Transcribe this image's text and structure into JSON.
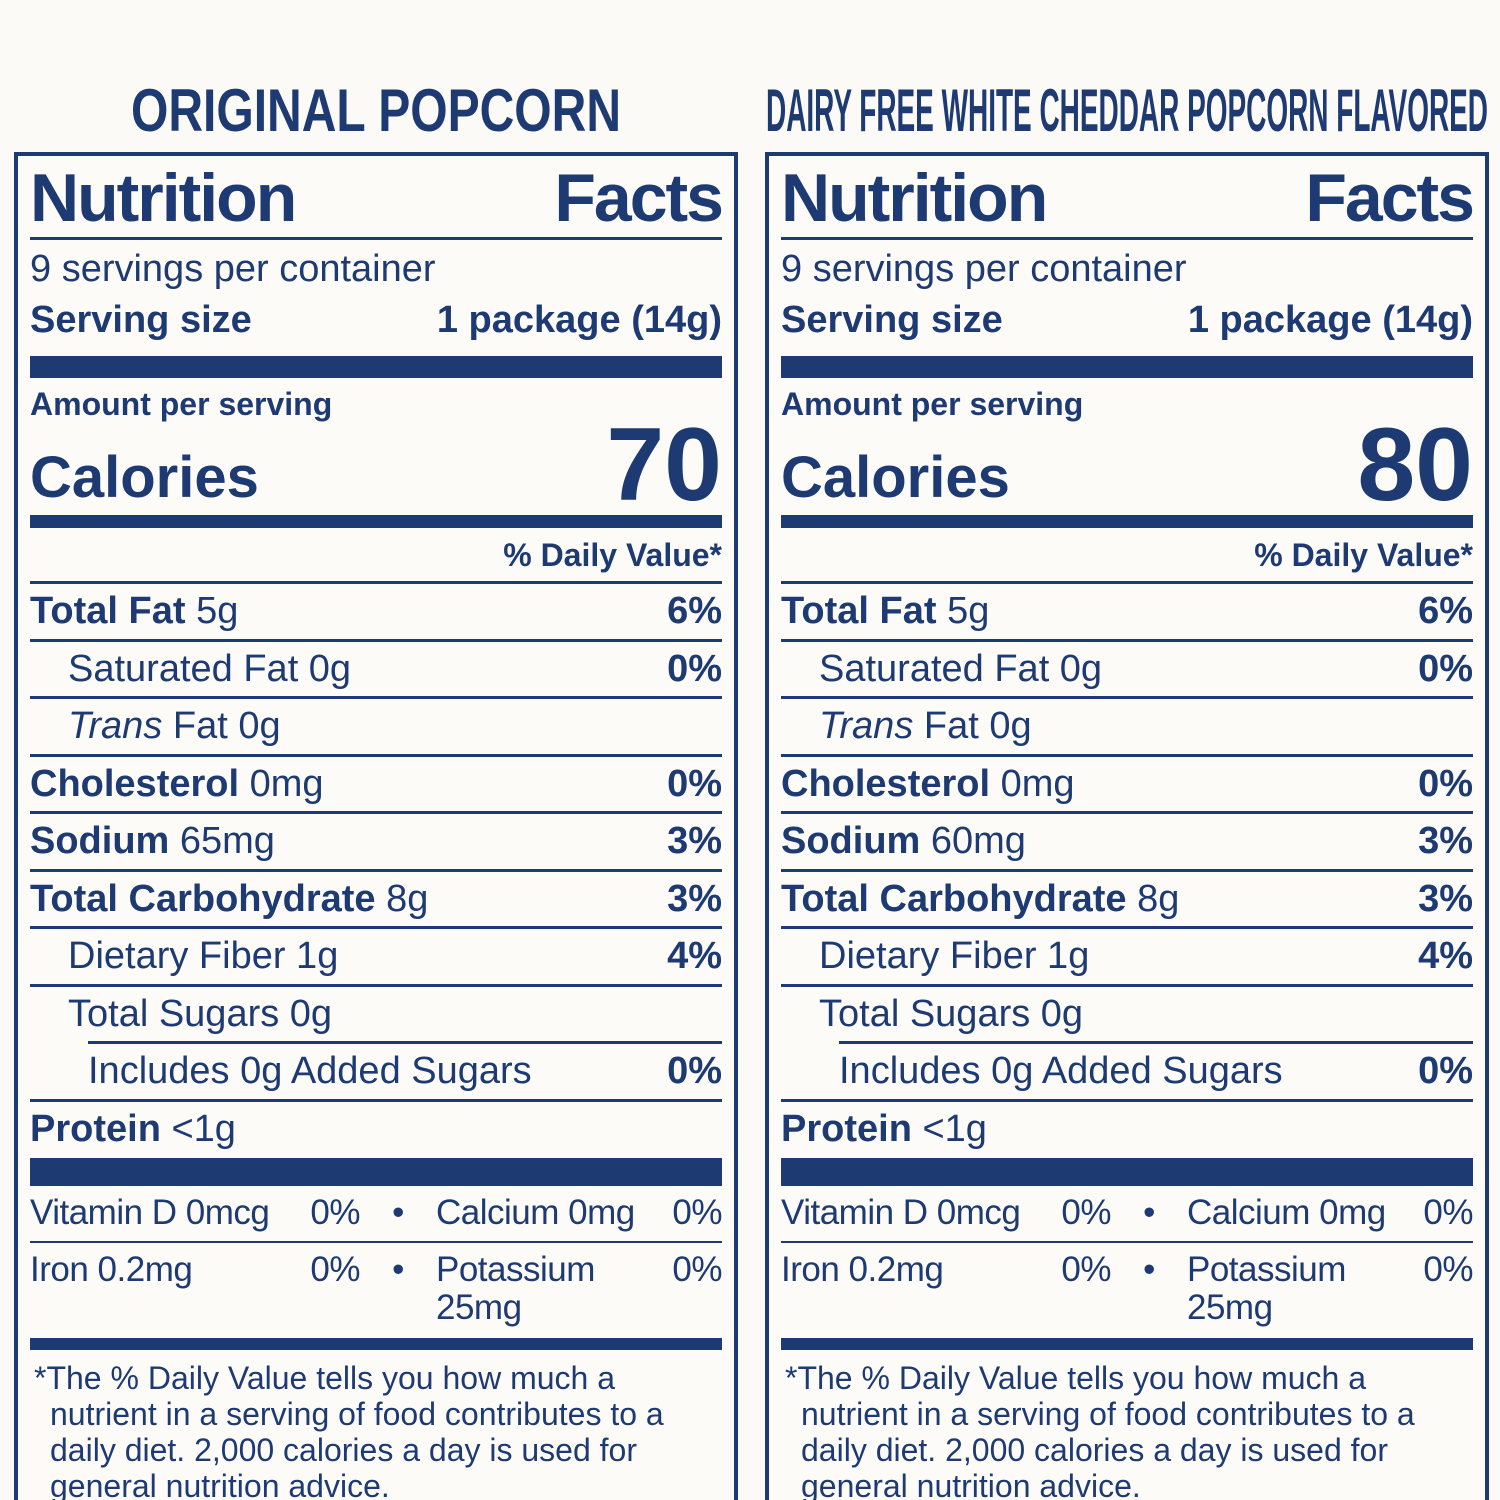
{
  "theme": {
    "navy": "#1e3a72",
    "page_background": "#fbfaf6",
    "label_background": "#fcfbf8"
  },
  "bullet_separator": "•",
  "labels": [
    {
      "product_title": "ORIGINAL POPCORN",
      "nf_title": "Nutrition Facts",
      "servings_per_container": "9 servings per container",
      "serving_size_label": "Serving size",
      "serving_size_value": "1 package (14g)",
      "amount_per_serving": "Amount per serving",
      "calories_label": "Calories",
      "calories_value": "70",
      "daily_value_header": "% Daily Value*",
      "nutrient_rows": [
        {
          "prefix_bold": "Total Fat",
          "text": " 5g",
          "pct": "6%",
          "indent": 0
        },
        {
          "text": "Saturated Fat 0g",
          "pct": "0%",
          "indent": 1
        },
        {
          "prefix_italic": "Trans",
          "text": " Fat 0g",
          "pct": "",
          "indent": 1
        },
        {
          "prefix_bold": "Cholesterol",
          "text": " 0mg",
          "pct": "0%",
          "indent": 0
        },
        {
          "prefix_bold": "Sodium",
          "text": " 65mg",
          "pct": "3%",
          "indent": 0
        },
        {
          "prefix_bold": "Total Carbohydrate",
          "text": " 8g",
          "pct": "3%",
          "indent": 0
        },
        {
          "text": "Dietary Fiber 1g",
          "pct": "4%",
          "indent": 1
        },
        {
          "text": "Total Sugars 0g",
          "pct": "",
          "indent": 1
        },
        {
          "text": "Includes 0g Added Sugars",
          "pct": "0%",
          "indent": 2,
          "partial_rule": true
        },
        {
          "prefix_bold": "Protein",
          "text": " <1g",
          "pct": "",
          "indent": 0
        }
      ],
      "micro_rows": [
        {
          "name": "Vitamin D 0mcg",
          "pct": "0%",
          "name2": "Calcium 0mg",
          "pct2": "0%"
        },
        {
          "name": "Iron 0.2mg",
          "pct": "0%",
          "name2": "Potassium 25mg",
          "pct2": "0%"
        }
      ],
      "footnote": "*The % Daily Value tells you how much a nutrient in a serving of food contributes to a daily diet. 2,000 calories a day is used for general nutrition advice."
    },
    {
      "product_title": "DAIRY FREE WHITE CHEDDAR POPCORN FLAVORED",
      "nf_title": "Nutrition Facts",
      "servings_per_container": "9 servings per container",
      "serving_size_label": "Serving size",
      "serving_size_value": "1 package (14g)",
      "amount_per_serving": "Amount per serving",
      "calories_label": "Calories",
      "calories_value": "80",
      "daily_value_header": "% Daily Value*",
      "nutrient_rows": [
        {
          "prefix_bold": "Total Fat",
          "text": " 5g",
          "pct": "6%",
          "indent": 0
        },
        {
          "text": "Saturated Fat 0g",
          "pct": "0%",
          "indent": 1
        },
        {
          "prefix_italic": "Trans",
          "text": " Fat 0g",
          "pct": "",
          "indent": 1
        },
        {
          "prefix_bold": "Cholesterol",
          "text": " 0mg",
          "pct": "0%",
          "indent": 0
        },
        {
          "prefix_bold": "Sodium",
          "text": " 60mg",
          "pct": "3%",
          "indent": 0
        },
        {
          "prefix_bold": "Total Carbohydrate",
          "text": " 8g",
          "pct": "3%",
          "indent": 0
        },
        {
          "text": "Dietary Fiber 1g",
          "pct": "4%",
          "indent": 1
        },
        {
          "text": "Total Sugars 0g",
          "pct": "",
          "indent": 1
        },
        {
          "text": "Includes 0g Added Sugars",
          "pct": "0%",
          "indent": 2,
          "partial_rule": true
        },
        {
          "prefix_bold": "Protein",
          "text": " <1g",
          "pct": "",
          "indent": 0
        }
      ],
      "micro_rows": [
        {
          "name": "Vitamin D 0mcg",
          "pct": "0%",
          "name2": "Calcium 0mg",
          "pct2": "0%"
        },
        {
          "name": "Iron 0.2mg",
          "pct": "0%",
          "name2": "Potassium 25mg",
          "pct2": "0%"
        }
      ],
      "footnote": "*The % Daily Value tells you how much a nutrient in a serving of food contributes to a daily diet. 2,000 calories a day is used for general nutrition advice."
    }
  ]
}
